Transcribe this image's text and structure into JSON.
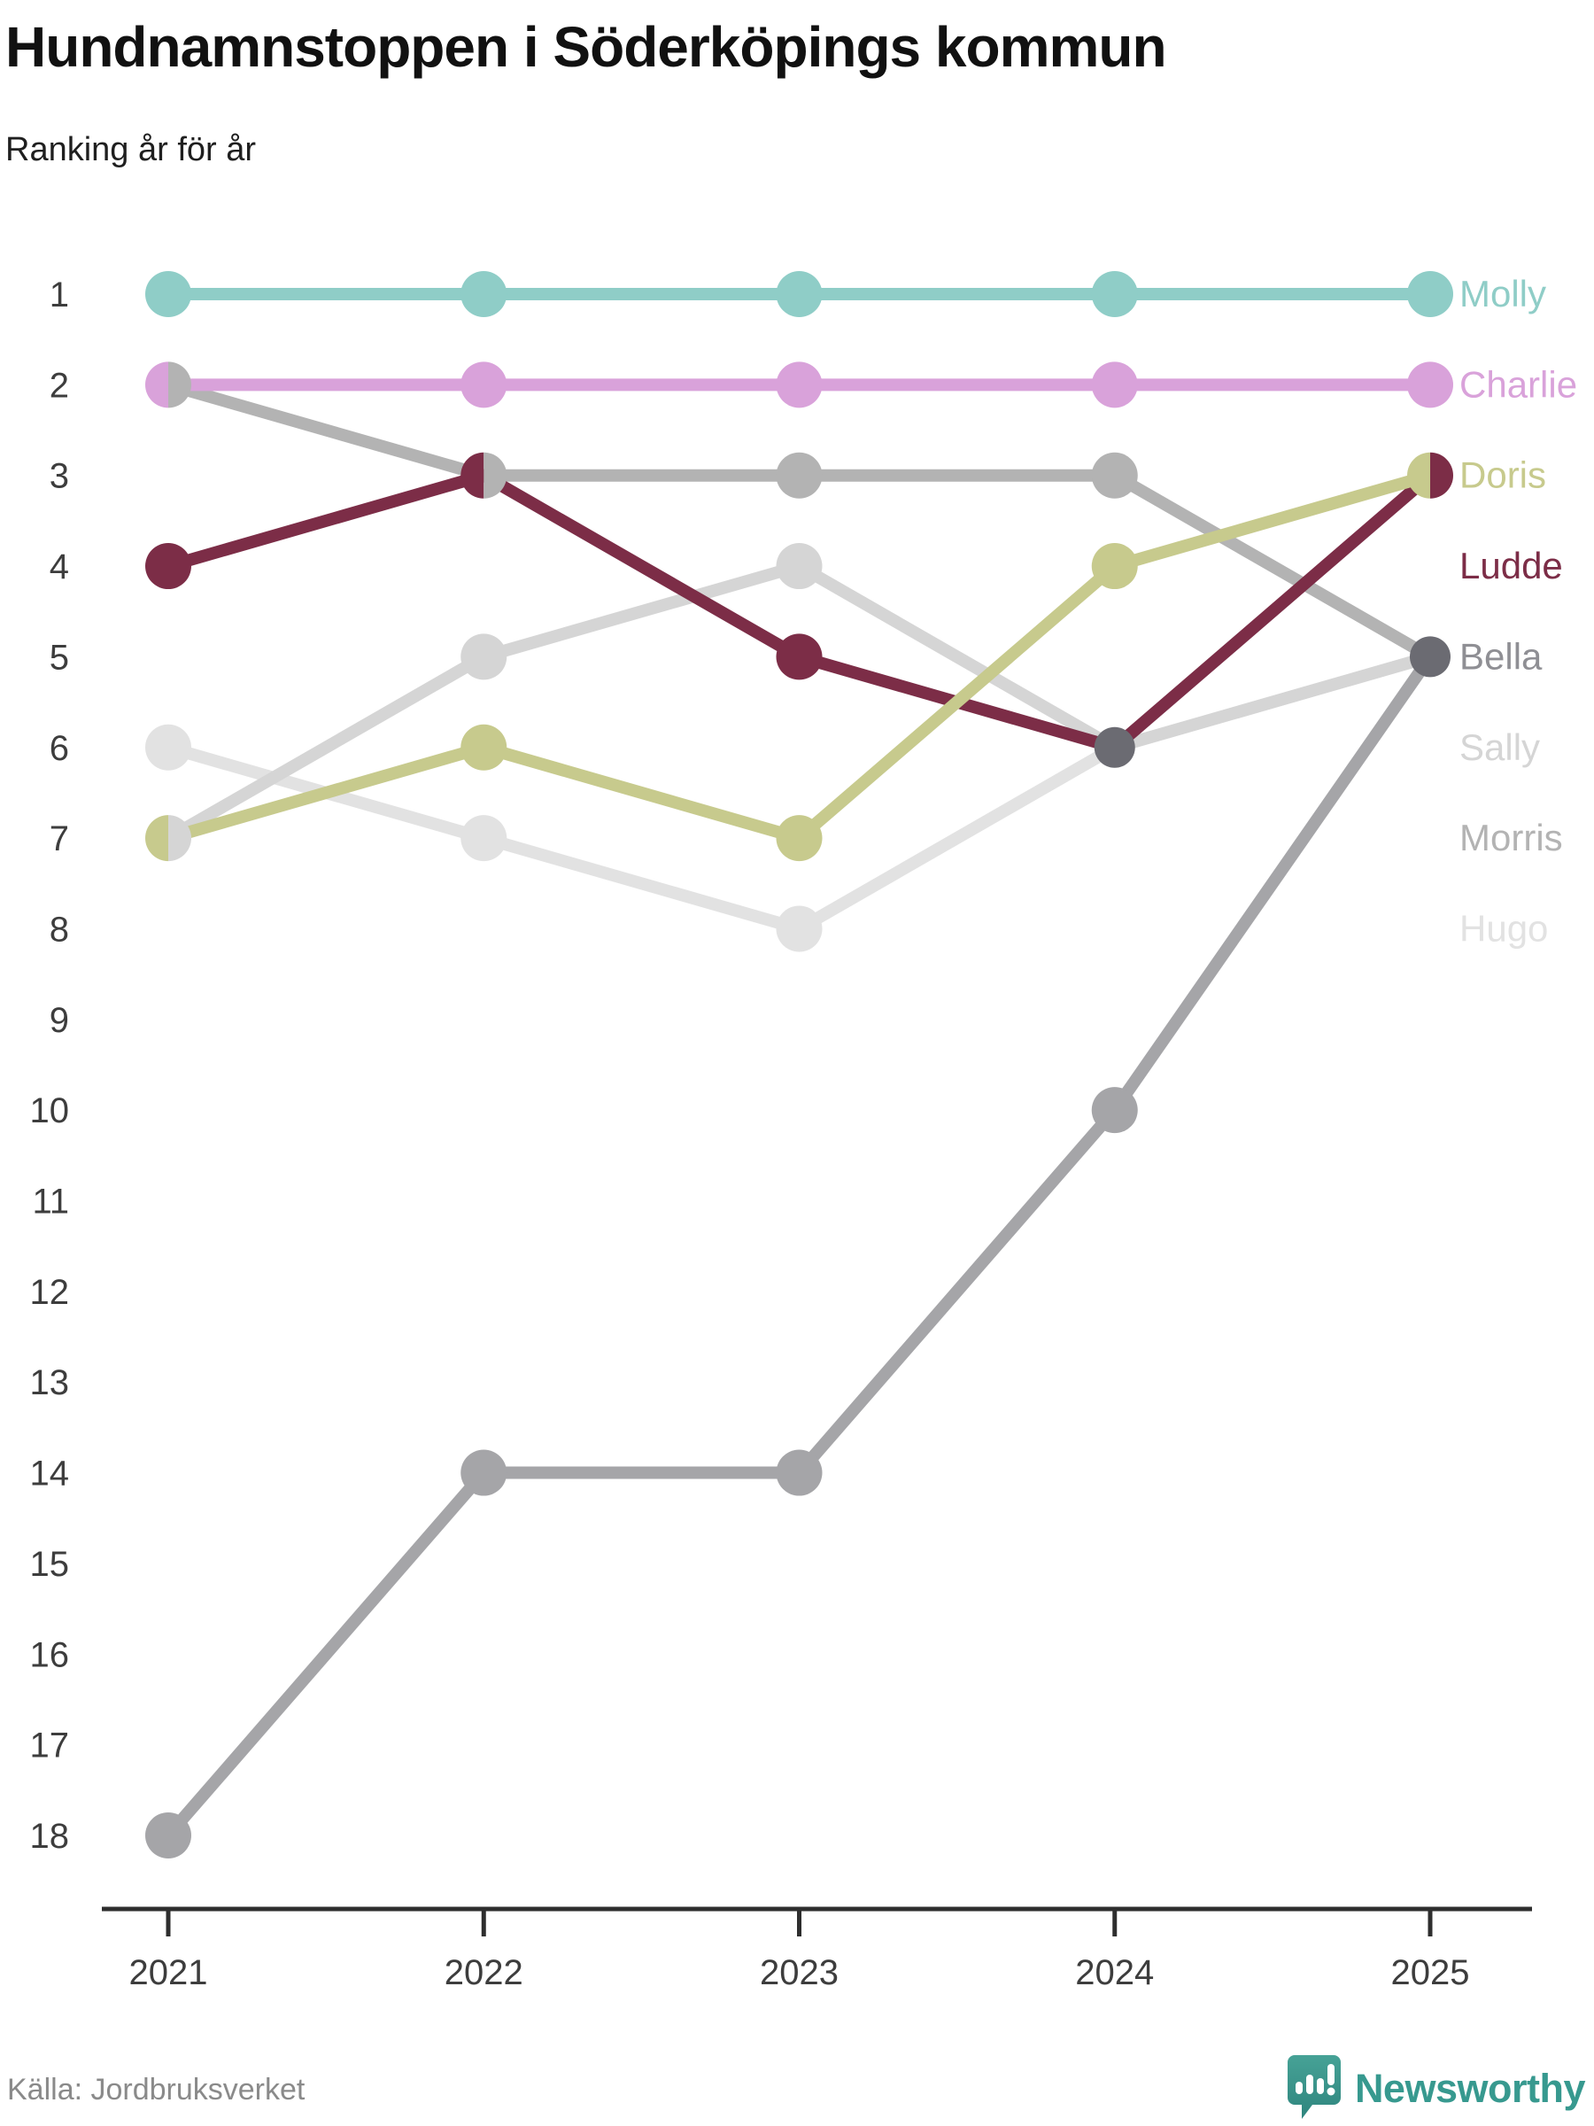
{
  "header": {
    "title": "Hundnamnstoppen i Söderköpings kommun",
    "subtitle": "Ranking år för år"
  },
  "chart_data": {
    "type": "line",
    "variant": "bump-ranking",
    "title": "Hundnamnstoppen i Söderköpings kommun",
    "subtitle": "Ranking år för år",
    "x": [
      2021,
      2022,
      2023,
      2024,
      2025
    ],
    "ylim": [
      1,
      18
    ],
    "y_direction": "1 is best (top)",
    "grid": false,
    "legend_position": "right-of-last-point",
    "axis_color": "#2e2e2e",
    "tick_label_color": "#3d3d3d",
    "tie_color": "#6b6b72",
    "series": [
      {
        "name": "Molly",
        "color": "#8fcdc7",
        "values": [
          1,
          1,
          1,
          1,
          1
        ],
        "label_row": 1
      },
      {
        "name": "Charlie",
        "color": "#d9a2da",
        "values": [
          2,
          2,
          2,
          2,
          2
        ],
        "label_row": 2
      },
      {
        "name": "Doris",
        "color": "#c7ca8d",
        "values": [
          7,
          6,
          7,
          4,
          3
        ],
        "label_row": 3
      },
      {
        "name": "Ludde",
        "color": "#7c2d47",
        "values": [
          4,
          3,
          5,
          6,
          3
        ],
        "label_row": 4
      },
      {
        "name": "Bella",
        "color": "#a5a5a8",
        "label_color": "#8f8f94",
        "values": [
          18,
          14,
          14,
          10,
          5
        ],
        "label_row": 5
      },
      {
        "name": "Sally",
        "color": "#d5d5d5",
        "values": [
          7,
          5,
          4,
          6,
          5
        ],
        "label_row": 6
      },
      {
        "name": "Morris",
        "color": "#b3b3b3",
        "values": [
          2,
          3,
          3,
          3,
          5
        ],
        "label_row": 7
      },
      {
        "name": "Hugo",
        "color": "#e2e2e2",
        "values": [
          6,
          7,
          8,
          6,
          5
        ],
        "label_row": 8
      }
    ]
  },
  "footer": {
    "source": "Källa: Jordbruksverket",
    "brand": "Newsworthy"
  }
}
